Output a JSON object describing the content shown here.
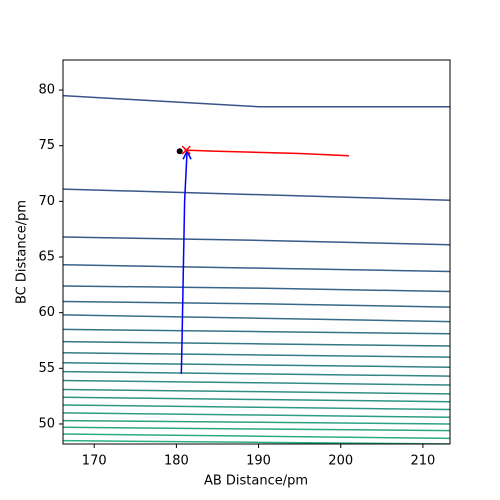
{
  "chart_data": {
    "type": "contour",
    "xlabel": "AB Distance/pm",
    "ylabel": "BC Distance/pm",
    "xlim": [
      166.2,
      213.3
    ],
    "ylim": [
      48.2,
      82.7
    ],
    "xticks": [
      170,
      180,
      190,
      200,
      210
    ],
    "yticks": [
      50,
      55,
      60,
      65,
      70,
      75,
      80
    ],
    "cmap": [
      "#3b528b",
      "#2ab07f"
    ],
    "contour_x": [
      166.2,
      190,
      213.3
    ],
    "contours": [
      [
        79.5,
        78.5,
        78.5
      ],
      [
        71.1,
        70.6,
        70.1
      ],
      [
        66.8,
        66.5,
        66.1
      ],
      [
        64.3,
        64.0,
        63.7
      ],
      [
        62.4,
        62.2,
        61.9
      ],
      [
        61.0,
        60.8,
        60.5
      ],
      [
        59.8,
        59.5,
        59.2
      ],
      [
        58.5,
        58.3,
        58.1
      ],
      [
        57.4,
        57.2,
        57.0
      ],
      [
        56.4,
        56.2,
        56.0
      ],
      [
        55.5,
        55.3,
        55.1
      ],
      [
        54.7,
        54.5,
        54.3
      ],
      [
        53.9,
        53.7,
        53.5
      ],
      [
        53.1,
        52.9,
        52.7
      ],
      [
        52.4,
        52.2,
        52.0
      ],
      [
        51.7,
        51.5,
        51.3
      ],
      [
        51.0,
        50.8,
        50.6
      ],
      [
        50.3,
        50.15,
        50.0
      ],
      [
        49.7,
        49.55,
        49.4
      ],
      [
        49.1,
        48.9,
        48.7
      ],
      [
        48.5,
        48.35,
        48.2
      ]
    ],
    "paths": [
      {
        "color": "#0000ff",
        "x": [
          180.6,
          180.7,
          180.8,
          180.9,
          181.0,
          181.2,
          181.3
        ],
        "y": [
          54.5,
          58,
          62,
          66,
          70,
          73,
          74.5
        ]
      },
      {
        "color": "#ff0000",
        "x": [
          181,
          185,
          190,
          195,
          201
        ],
        "y": [
          74.6,
          74.5,
          74.4,
          74.3,
          74.1
        ]
      }
    ],
    "points": [
      {
        "x": 180.4,
        "y": 74.5,
        "color": "#000000",
        "marker": "dot"
      },
      {
        "x": 181.2,
        "y": 74.6,
        "color": "#ff0000",
        "marker": "x"
      }
    ]
  }
}
